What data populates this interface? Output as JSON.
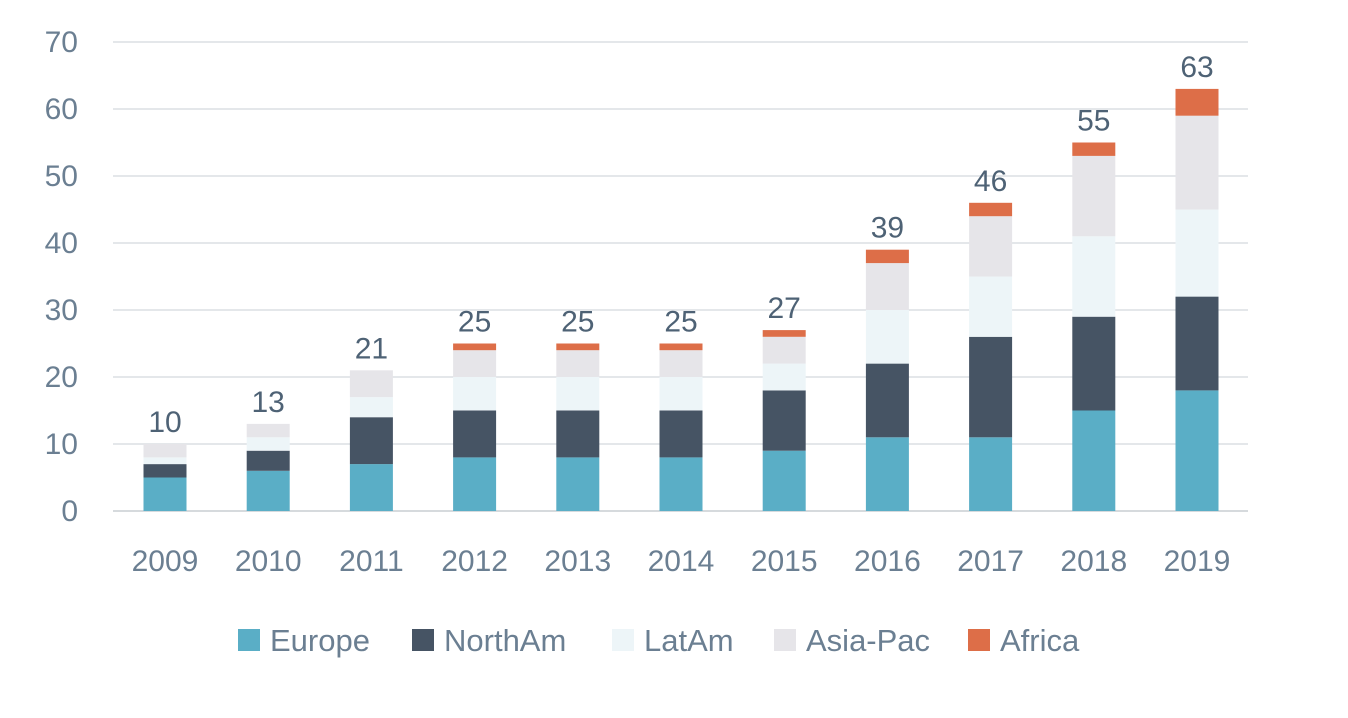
{
  "chart_data": {
    "type": "bar",
    "stacked": true,
    "categories": [
      "2009",
      "2010",
      "2011",
      "2012",
      "2013",
      "2014",
      "2015",
      "2016",
      "2017",
      "2018",
      "2019"
    ],
    "series": [
      {
        "name": "Europe",
        "color": "#5aaec6",
        "values": [
          5,
          6,
          7,
          8,
          8,
          8,
          9,
          11,
          11,
          15,
          18
        ]
      },
      {
        "name": "NorthAm",
        "color": "#465464",
        "values": [
          2,
          3,
          7,
          7,
          7,
          7,
          9,
          11,
          15,
          14,
          14
        ]
      },
      {
        "name": "LatAm",
        "color": "#edf5f8",
        "values": [
          1,
          2,
          3,
          5,
          5,
          5,
          4,
          8,
          9,
          12,
          13
        ]
      },
      {
        "name": "Asia-Pac",
        "color": "#e6e5e9",
        "values": [
          2,
          2,
          4,
          4,
          4,
          4,
          4,
          7,
          9,
          12,
          14
        ]
      },
      {
        "name": "Africa",
        "color": "#dd6e48",
        "values": [
          0,
          0,
          0,
          1,
          1,
          1,
          1,
          2,
          2,
          2,
          4
        ]
      }
    ],
    "totals": [
      "10",
      "13",
      "21",
      "25",
      "25",
      "25",
      "27",
      "39",
      "46",
      "55",
      "63"
    ],
    "y_ticks": [
      "0",
      "10",
      "20",
      "30",
      "40",
      "50",
      "60",
      "70"
    ],
    "ylim": [
      0,
      70
    ],
    "grid": true,
    "legend_position": "bottom",
    "title": "",
    "xlabel": "",
    "ylabel": ""
  }
}
